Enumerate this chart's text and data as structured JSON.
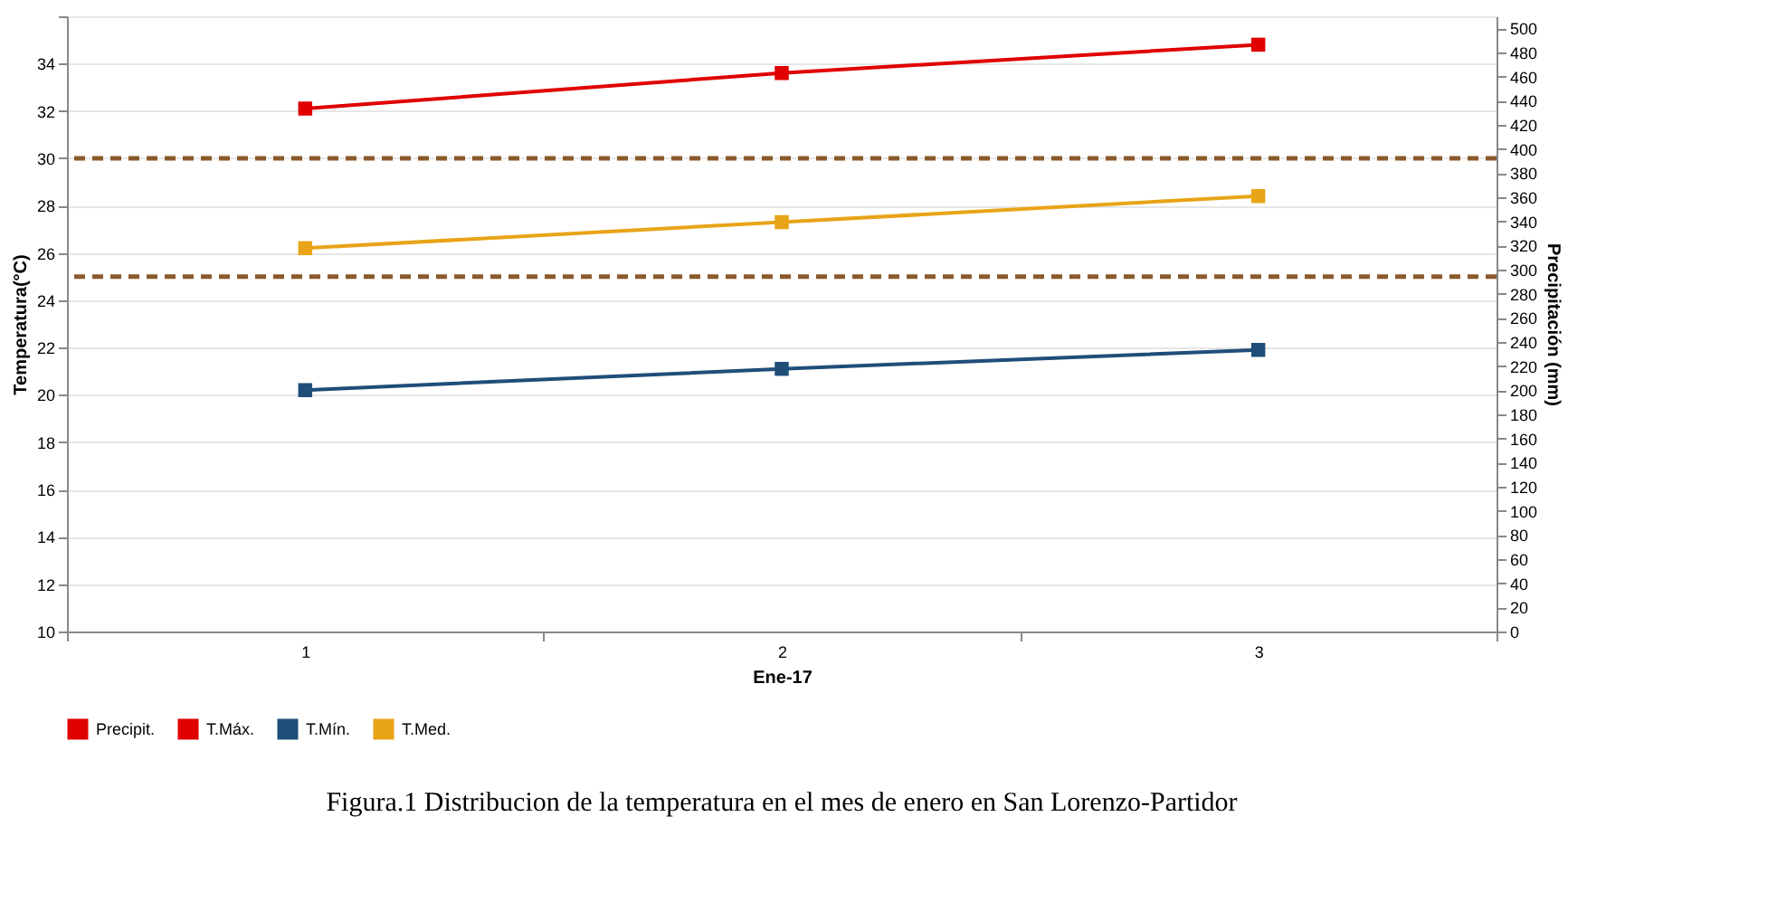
{
  "chart_data": {
    "type": "line",
    "categories": [
      "1",
      "2",
      "3"
    ],
    "xlabel": "Ene-17",
    "ylabel": "Temperatura(°C)",
    "y2label": "Precipitación (mm)",
    "series": [
      {
        "name": "Precipit.",
        "type": "bar",
        "axis": "y2",
        "color": "#e00000",
        "values": [
          0,
          0,
          0
        ]
      },
      {
        "name": "T.Máx.",
        "color": "#e00000",
        "values": [
          32.1,
          33.6,
          34.8
        ]
      },
      {
        "name": "T.Mín.",
        "color": "#1f4e79",
        "values": [
          20.2,
          21.1,
          21.9
        ]
      },
      {
        "name": "T.Med.",
        "color": "#e8a317",
        "values": [
          26.2,
          27.3,
          28.4
        ]
      }
    ],
    "ylim": [
      10,
      36
    ],
    "yticks": [
      10,
      12,
      14,
      16,
      18,
      20,
      22,
      24,
      26,
      28,
      30,
      32,
      34,
      {
        "value": 36,
        "label": null
      }
    ],
    "y2lim": [
      0,
      510
    ],
    "y2ticks": [
      0,
      20,
      40,
      60,
      80,
      100,
      120,
      140,
      160,
      180,
      200,
      220,
      240,
      260,
      280,
      300,
      320,
      340,
      360,
      380,
      400,
      420,
      440,
      460,
      480,
      500
    ],
    "ref_lines": [
      {
        "axis": "y",
        "value": 30,
        "color": "#8b5a2b",
        "line_style": "dashed"
      },
      {
        "axis": "y",
        "value": 25,
        "color": "#8b5a2b",
        "line_style": "dashed"
      }
    ],
    "marker": "square",
    "line_style": "solid",
    "grid": "y",
    "legend": "bottom",
    "annotations": [
      "Figura.1 Distribucion de la temperatura en el mes de enero en San Lorenzo-Partidor"
    ]
  }
}
